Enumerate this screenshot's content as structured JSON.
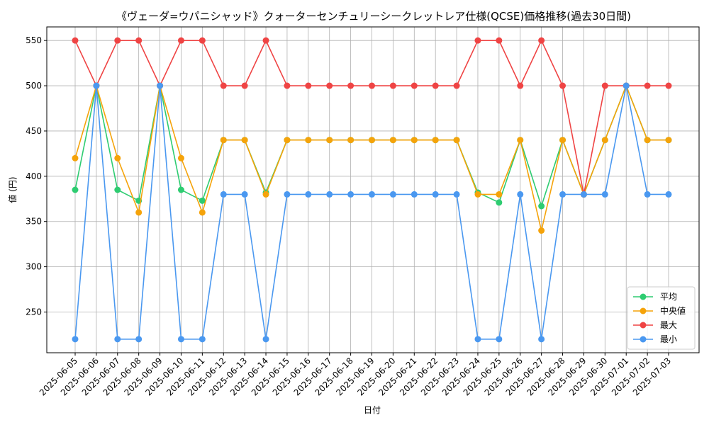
{
  "chart_data": {
    "type": "line",
    "title": "《ヴェーダ=ウパニシャッド》クォーターセンチュリーシークレットレア仕様(QCSE)価格推移(過去30日間)",
    "xlabel": "日付",
    "ylabel": "値 (円)",
    "ylim": [
      205,
      565
    ],
    "yticks": [
      250,
      300,
      350,
      400,
      450,
      500,
      550
    ],
    "grid": true,
    "legend_position": "lower-right",
    "categories": [
      "2025-06-05",
      "2025-06-06",
      "2025-06-07",
      "2025-06-08",
      "2025-06-09",
      "2025-06-10",
      "2025-06-11",
      "2025-06-12",
      "2025-06-13",
      "2025-06-14",
      "2025-06-15",
      "2025-06-16",
      "2025-06-17",
      "2025-06-18",
      "2025-06-19",
      "2025-06-20",
      "2025-06-21",
      "2025-06-22",
      "2025-06-23",
      "2025-06-24",
      "2025-06-25",
      "2025-06-26",
      "2025-06-27",
      "2025-06-28",
      "2025-06-29",
      "2025-06-30",
      "2025-07-01",
      "2025-07-02",
      "2025-07-03"
    ],
    "series": [
      {
        "name": "平均",
        "color": "#2ecc71",
        "values": [
          385,
          500,
          385,
          373,
          500,
          385,
          373,
          440,
          440,
          382,
          440,
          440,
          440,
          440,
          440,
          440,
          440,
          440,
          440,
          382,
          371,
          440,
          367,
          440,
          380,
          440,
          500,
          440,
          440
        ]
      },
      {
        "name": "中央値",
        "color": "#f5a30a",
        "values": [
          420,
          500,
          420,
          360,
          500,
          420,
          360,
          440,
          440,
          380,
          440,
          440,
          440,
          440,
          440,
          440,
          440,
          440,
          440,
          380,
          380,
          440,
          340,
          440,
          380,
          440,
          500,
          440,
          440
        ]
      },
      {
        "name": "最大",
        "color": "#ef4444",
        "values": [
          550,
          500,
          550,
          550,
          500,
          550,
          550,
          500,
          500,
          550,
          500,
          500,
          500,
          500,
          500,
          500,
          500,
          500,
          500,
          550,
          550,
          500,
          550,
          500,
          380,
          500,
          500,
          500,
          500
        ]
      },
      {
        "name": "最小",
        "color": "#4a98f0",
        "values": [
          220,
          500,
          220,
          220,
          500,
          220,
          220,
          380,
          380,
          220,
          380,
          380,
          380,
          380,
          380,
          380,
          380,
          380,
          380,
          220,
          220,
          380,
          220,
          380,
          380,
          380,
          500,
          380,
          380
        ]
      }
    ]
  }
}
